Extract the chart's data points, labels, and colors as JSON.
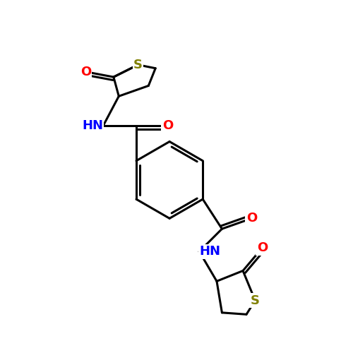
{
  "background_color": "#ffffff",
  "bond_color": "#000000",
  "sulfur_color": "#808000",
  "oxygen_color": "#ff0000",
  "nitrogen_color": "#0000ff",
  "lw": 2.2,
  "figsize": [
    5.0,
    5.0
  ],
  "dpi": 100,
  "xlim": [
    0,
    10
  ],
  "ylim": [
    0,
    10
  ]
}
